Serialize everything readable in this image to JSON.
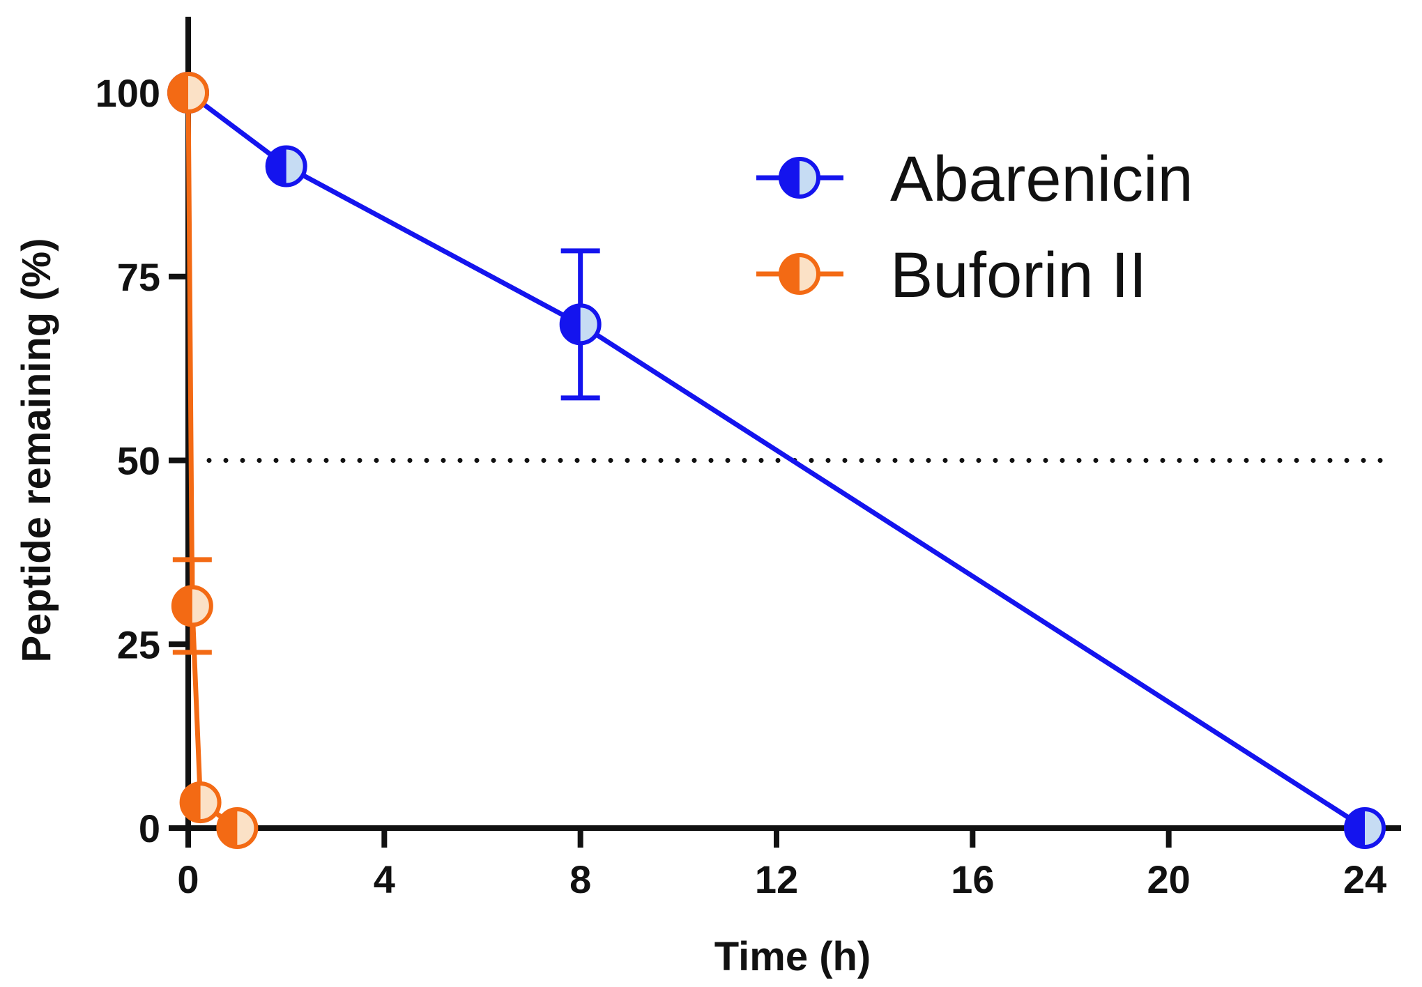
{
  "chart_data": {
    "type": "line",
    "title": "",
    "xlabel": "Time (h)",
    "ylabel": "Peptide remaining (%)",
    "xlim": [
      0,
      25
    ],
    "ylim": [
      0,
      112
    ],
    "xticks": [
      0,
      4,
      8,
      12,
      16,
      20,
      24
    ],
    "yticks": [
      0,
      25,
      50,
      75,
      100
    ],
    "reference_line": {
      "y": 50,
      "style": "dotted"
    },
    "legend_position": "top-right",
    "series": [
      {
        "name": "Abarenicin",
        "color": "#1414ee",
        "fill_light": "#c6dcf3",
        "points": [
          {
            "x": 0,
            "y": 100
          },
          {
            "x": 2,
            "y": 90
          },
          {
            "x": 8,
            "y": 68.5,
            "error": 10
          },
          {
            "x": 24,
            "y": 0
          }
        ]
      },
      {
        "name": "Buforin II",
        "color": "#f36a14",
        "fill_light": "#fbe1c6",
        "points": [
          {
            "x": 0,
            "y": 100
          },
          {
            "x": 0.083,
            "y": 30.2,
            "error": 6.3
          },
          {
            "x": 0.25,
            "y": 3.5
          },
          {
            "x": 1,
            "y": 0
          }
        ]
      }
    ]
  }
}
